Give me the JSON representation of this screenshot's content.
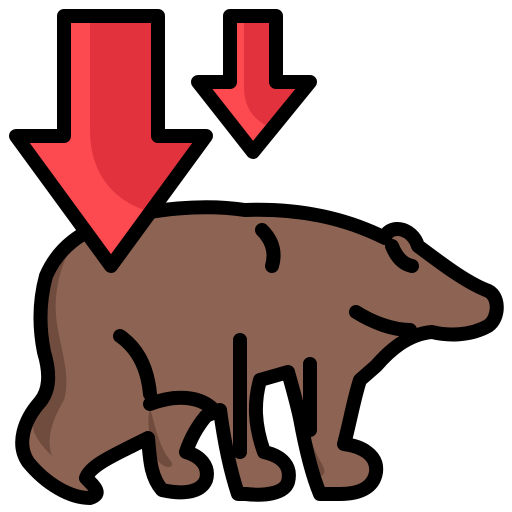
{
  "icon": {
    "name": "bear-market-icon",
    "colors": {
      "bear_body": "#8d6453",
      "bear_shadow": "#704c3e",
      "arrow_red": "#fd4a50",
      "arrow_shadow": "#e2323d",
      "outline": "#000000",
      "background": "#ffffff"
    }
  }
}
